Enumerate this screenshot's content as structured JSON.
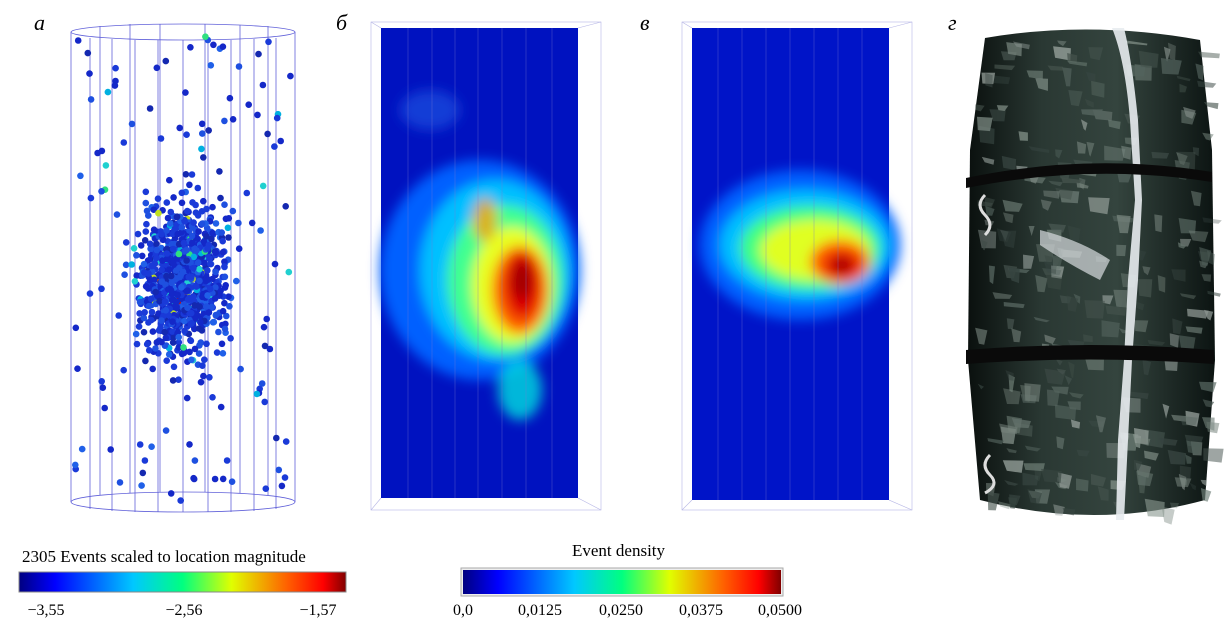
{
  "panels": [
    {
      "letter": "а"
    },
    {
      "letter": "б"
    },
    {
      "letter": "в"
    },
    {
      "letter": "г"
    }
  ],
  "events_colorbar": {
    "title": "2305 Events scaled to location magnitude",
    "ticks": [
      "−3,55",
      "−2,56",
      "−1,57"
    ]
  },
  "density_colorbar": {
    "title": "Event density",
    "ticks": [
      "0,0",
      "0,0125",
      "0,0250",
      "0,0375",
      "0,0500"
    ]
  },
  "colors": {
    "jet_start": "#000080",
    "jet_mid": "#00ff80",
    "jet_end": "#800000",
    "wire": "#3a3ad0",
    "rock_dark": "#1a2420",
    "crack_white": "#e8ecf0"
  }
}
